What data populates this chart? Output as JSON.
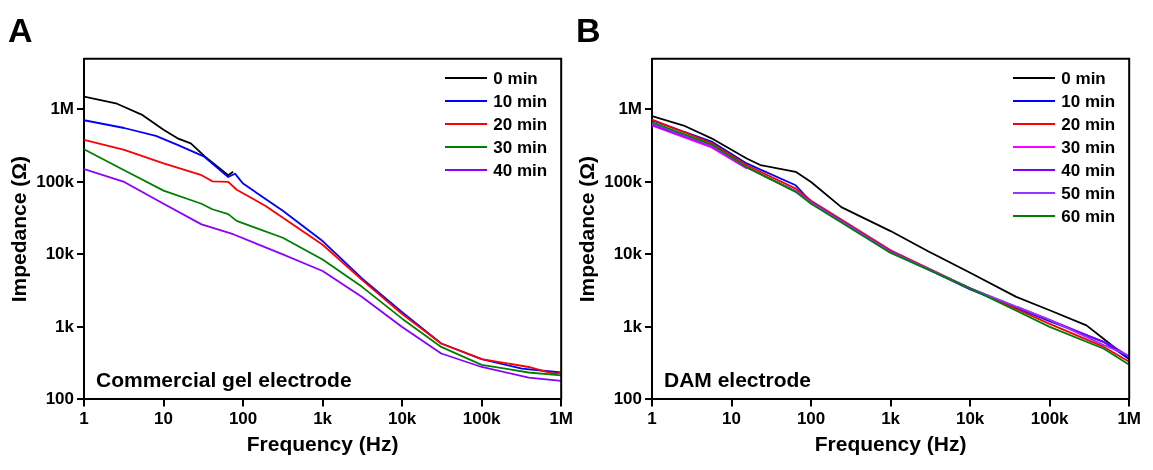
{
  "chart_data": [
    {
      "type": "line",
      "title": "A",
      "xlabel": "Frequency (Hz)",
      "ylabel": "Impedance (Ω)",
      "annotations": [
        "Commercial gel electrode"
      ],
      "log": "xy",
      "grid": false,
      "legend": "top right",
      "marker": "none",
      "line_style": "solid",
      "xlim": [
        1,
        1000000
      ],
      "ylim": [
        100,
        5000000
      ],
      "xticks": [
        1,
        10,
        100,
        {
          "value": 1000,
          "label": "1k"
        },
        {
          "value": 10000,
          "label": "10k"
        },
        {
          "value": 100000,
          "label": "100k"
        },
        {
          "value": 1000000,
          "label": "1M"
        }
      ],
      "yticks": [
        100,
        {
          "value": 1000,
          "label": "1k"
        },
        {
          "value": 10000,
          "label": "10k"
        },
        {
          "value": 100000,
          "label": "100k"
        },
        {
          "value": 1000000,
          "label": "1M"
        }
      ],
      "series": [
        {
          "name": "0 min",
          "color": "#000000",
          "x": [
            1,
            2.6,
            5.3,
            10,
            15,
            22,
            33,
            65,
            75
          ],
          "values": [
            1500000,
            1200000,
            850000,
            525000,
            400000,
            340000,
            225000,
            124000,
            138000
          ]
        },
        {
          "name": "10 min",
          "color": "#0000ff",
          "x": [
            1,
            3.2,
            8,
            15,
            32,
            65,
            79,
            100,
            316,
            1000,
            3100,
            10000,
            31000,
            100000,
            320000,
            1000000
          ],
          "values": [
            710000,
            555000,
            433000,
            325000,
            225000,
            117000,
            130000,
            95000,
            40000,
            15300,
            4700,
            1600,
            590,
            360,
            265,
            235
          ]
        },
        {
          "name": "20 min",
          "color": "#ff0000",
          "x": [
            1,
            3.2,
            10,
            30,
            41,
            65,
            83,
            190,
            1000,
            3100,
            10000,
            31000,
            100000,
            390000,
            800000,
            1000000
          ],
          "values": [
            380000,
            277000,
            180000,
            124000,
            102000,
            100000,
            78000,
            47000,
            13600,
            4500,
            1500,
            590,
            360,
            280,
            225,
            235
          ]
        },
        {
          "name": "30 min",
          "color": "#008000",
          "x": [
            1,
            3.2,
            10,
            30,
            41,
            65,
            83,
            316,
            1000,
            3100,
            10000,
            31000,
            100000,
            390000,
            1000000
          ],
          "values": [
            283000,
            145000,
            76000,
            50000,
            42000,
            36000,
            29000,
            17000,
            8500,
            3600,
            1300,
            530,
            300,
            235,
            215
          ]
        },
        {
          "name": "40 min",
          "color": "#8b00ff",
          "x": [
            1,
            3.2,
            10,
            30,
            75,
            316,
            1000,
            3100,
            10000,
            31000,
            100000,
            390000,
            1000000
          ],
          "values": [
            150000,
            100000,
            50000,
            26000,
            19000,
            10000,
            5900,
            2600,
            1000,
            430,
            280,
            200,
            180
          ]
        }
      ]
    },
    {
      "type": "line",
      "title": "B",
      "xlabel": "Frequency (Hz)",
      "ylabel": "Impedance (Ω)",
      "annotations": [
        "DAM electrode"
      ],
      "log": "xy",
      "grid": false,
      "legend": "top right",
      "marker": "none",
      "line_style": "solid",
      "xlim": [
        1,
        1000000
      ],
      "ylim": [
        100,
        5000000
      ],
      "xticks": [
        1,
        10,
        100,
        {
          "value": 1000,
          "label": "1k"
        },
        {
          "value": 10000,
          "label": "10k"
        },
        {
          "value": 100000,
          "label": "100k"
        },
        {
          "value": 1000000,
          "label": "1M"
        }
      ],
      "yticks": [
        100,
        {
          "value": 1000,
          "label": "1k"
        },
        {
          "value": 10000,
          "label": "10k"
        },
        {
          "value": 100000,
          "label": "100k"
        },
        {
          "value": 1000000,
          "label": "1M"
        }
      ],
      "series": [
        {
          "name": "0 min",
          "color": "#000000",
          "x": [
            1,
            2.5,
            5.6,
            15.5,
            23,
            64,
            100,
            240,
            1000,
            3000,
            10000,
            38000,
            100000,
            290000,
            480000,
            1000000
          ],
          "values": [
            808000,
            600000,
            400000,
            211000,
            171000,
            138000,
            100000,
            45000,
            21000,
            11000,
            5600,
            2600,
            1700,
            1050,
            680,
            360
          ]
        },
        {
          "name": "10 min",
          "color": "#0000ff",
          "x": [
            1,
            5.6,
            15.5,
            64,
            100,
            1000,
            10000,
            100000,
            480000,
            1000000
          ],
          "values": [
            710000,
            360000,
            180000,
            90000,
            53000,
            11000,
            3300,
            1200,
            620,
            360
          ]
        },
        {
          "name": "20 min",
          "color": "#ff0000",
          "x": [
            1,
            5.6,
            15.5,
            64,
            100,
            1000,
            10000,
            100000,
            480000,
            1000000
          ],
          "values": [
            725000,
            345000,
            170000,
            81000,
            55000,
            11400,
            3400,
            1100,
            530,
            330
          ]
        },
        {
          "name": "30 min",
          "color": "#ff00ff",
          "x": [
            1,
            5.6,
            15.5
          ],
          "values": [
            600000,
            300000,
            154000
          ]
        },
        {
          "name": "40 min",
          "color": "#8000ff",
          "x": [
            1,
            5.6,
            15.5,
            64,
            100,
            1000,
            10000,
            100000,
            590000,
            1000000
          ],
          "values": [
            618000,
            315000,
            158000,
            75000,
            53000,
            11000,
            3400,
            1250,
            560,
            390
          ]
        },
        {
          "name": "50 min",
          "color": "#9933ff",
          "x": [
            1,
            5.6,
            15.5,
            64,
            100,
            1000,
            10000,
            100000,
            480000,
            1000000
          ],
          "values": [
            640000,
            320000,
            160000,
            74000,
            52000,
            10800,
            3400,
            1250,
            560,
            400
          ]
        },
        {
          "name": "60 min",
          "color": "#008000",
          "x": [
            1,
            5.6,
            15.5,
            64,
            100,
            1000,
            10000,
            100000,
            480000,
            1000000
          ],
          "values": [
            665000,
            330000,
            160000,
            73000,
            50000,
            10500,
            3400,
            1000,
            500,
            300
          ]
        }
      ]
    }
  ]
}
